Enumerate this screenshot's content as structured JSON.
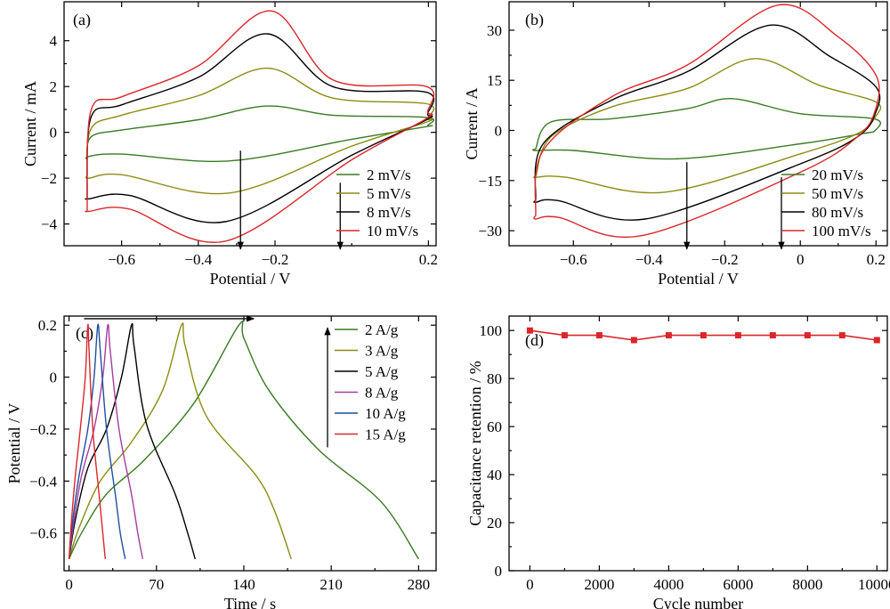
{
  "chart_data": [
    {
      "id": "a",
      "type": "line",
      "tag": "(a)",
      "xlabel": "Potential / V",
      "ylabel": "Current / mA",
      "xlim": [
        -0.75,
        0.22
      ],
      "ylim": [
        -4.95,
        5.7
      ],
      "xticks": [
        -0.6,
        -0.4,
        -0.2,
        0.2
      ],
      "xtick_labels": [
        "−0.6",
        "−0.4",
        "−0.2",
        "0.2"
      ],
      "yticks": [
        -4,
        -2,
        0,
        2,
        4
      ],
      "ytick_labels": [
        "−4",
        "−2",
        "0",
        "2",
        "4"
      ],
      "legend_position": "bottom-right",
      "series": [
        {
          "name": "2 mV/s",
          "color": "#3a7a22",
          "x": [
            -0.69,
            -0.68,
            -0.6,
            -0.4,
            -0.22,
            -0.05,
            0.195,
            0.198,
            0.195,
            0.0,
            -0.32,
            -0.6,
            -0.685,
            -0.69
          ],
          "y": [
            -1.2,
            -0.2,
            0.1,
            0.55,
            1.15,
            0.75,
            0.65,
            0.3,
            0.25,
            -0.3,
            -1.25,
            -0.95,
            -1.05,
            -1.2
          ]
        },
        {
          "name": "5 mV/s",
          "color": "#8b8b12",
          "x": [
            -0.69,
            -0.68,
            -0.6,
            -0.4,
            -0.22,
            -0.05,
            0.195,
            0.198,
            0.195,
            0.0,
            -0.32,
            -0.6,
            -0.685,
            -0.69
          ],
          "y": [
            -1.9,
            0.15,
            0.75,
            1.6,
            2.8,
            1.5,
            1.25,
            0.6,
            0.45,
            -0.6,
            -2.65,
            -1.85,
            -2.0,
            -1.9
          ]
        },
        {
          "name": "8 mV/s",
          "color": "#000000",
          "x": [
            -0.69,
            -0.68,
            -0.6,
            -0.4,
            -0.22,
            -0.05,
            0.195,
            0.198,
            0.195,
            0.0,
            -0.33,
            -0.58,
            -0.685,
            -0.69
          ],
          "y": [
            -2.9,
            0.65,
            1.2,
            2.4,
            4.3,
            2.0,
            1.75,
            0.8,
            0.55,
            -1.0,
            -3.9,
            -2.75,
            -2.9,
            -2.9
          ]
        },
        {
          "name": "10 mV/s",
          "color": "#d9262b",
          "x": [
            -0.69,
            -0.68,
            -0.6,
            -0.4,
            -0.21,
            -0.05,
            0.195,
            0.198,
            0.195,
            0.0,
            -0.33,
            -0.58,
            -0.685,
            -0.69
          ],
          "y": [
            -3.45,
            0.95,
            1.55,
            2.9,
            5.3,
            2.3,
            2.0,
            0.9,
            0.6,
            -1.2,
            -4.75,
            -3.35,
            -3.45,
            -3.45
          ]
        }
      ],
      "arrows": [
        {
          "x": -0.29,
          "y_from": -0.8,
          "y_to": -5.1
        },
        {
          "x": -0.03,
          "y_from": -2.2,
          "y_to": -5.1
        }
      ]
    },
    {
      "id": "b",
      "type": "line",
      "tag": "(b)",
      "xlabel": "Potential / V",
      "ylabel": "Current / A",
      "xlim": [
        -0.77,
        0.23
      ],
      "ylim": [
        -34.5,
        38.5
      ],
      "xticks": [
        -0.6,
        -0.4,
        -0.2,
        0,
        0.2
      ],
      "xtick_labels": [
        "−0.6",
        "−0.4",
        "−0.2",
        "0",
        "0.2"
      ],
      "yticks": [
        -30,
        -15,
        0,
        15,
        30
      ],
      "ytick_labels": [
        "−30",
        "−15",
        "0",
        "15",
        "30"
      ],
      "legend_position": "bottom-right",
      "series": [
        {
          "name": "20 mV/s",
          "color": "#3a7a22",
          "x": [
            -0.7,
            -0.66,
            -0.5,
            -0.3,
            -0.18,
            0.0,
            0.195,
            0.198,
            0.16,
            0.0,
            -0.33,
            -0.6,
            -0.7,
            -0.7
          ],
          "y": [
            -5.5,
            2.5,
            3.5,
            6.5,
            9.5,
            5.0,
            3.5,
            0.0,
            -1.0,
            -4.0,
            -8.5,
            -6.0,
            -6.0,
            -5.5
          ]
        },
        {
          "name": "50 mV/s",
          "color": "#8b8b12",
          "x": [
            -0.7,
            -0.66,
            -0.5,
            -0.3,
            -0.12,
            0.05,
            0.2,
            0.198,
            0.15,
            0.0,
            -0.36,
            -0.62,
            -0.7,
            -0.7
          ],
          "y": [
            -14.0,
            -2.0,
            7.0,
            12.5,
            21.5,
            13.5,
            8.5,
            4.0,
            -1.0,
            -7.0,
            -18.5,
            -14.0,
            -14.0,
            -14.0
          ]
        },
        {
          "name": "80 mV/s",
          "color": "#000000",
          "x": [
            -0.7,
            -0.68,
            -0.5,
            -0.3,
            -0.08,
            0.08,
            0.2,
            0.198,
            0.15,
            0.0,
            -0.41,
            -0.64,
            -0.7,
            -0.7
          ],
          "y": [
            -21.0,
            -4.0,
            9.0,
            17.5,
            31.5,
            22.0,
            13.0,
            5.0,
            -2.0,
            -10.0,
            -26.5,
            -21.0,
            -21.5,
            -21.0
          ]
        },
        {
          "name": "100 mV/s",
          "color": "#d9262b",
          "x": [
            -0.7,
            -0.68,
            -0.5,
            -0.3,
            -0.06,
            0.1,
            0.2,
            0.198,
            0.15,
            0.0,
            -0.42,
            -0.64,
            -0.7,
            -0.7
          ],
          "y": [
            -25.5,
            -6.0,
            10.0,
            19.5,
            37.5,
            28.0,
            16.5,
            6.0,
            -2.0,
            -12.5,
            -31.5,
            -26.0,
            -26.5,
            -25.5
          ]
        }
      ],
      "arrows": [
        {
          "x": -0.3,
          "y_from": -9.5,
          "y_to": -35.5
        },
        {
          "x": -0.05,
          "y_from": -14.0,
          "y_to": -35.5
        }
      ]
    },
    {
      "id": "c",
      "type": "line",
      "tag": "(c)",
      "xlabel": "Time / s",
      "ylabel": "Potential / V",
      "xlim": [
        -4,
        294
      ],
      "ylim": [
        -0.745,
        0.235
      ],
      "xticks": [
        0,
        70,
        140,
        210,
        280
      ],
      "xtick_labels": [
        "0",
        "70",
        "140",
        "210",
        "280"
      ],
      "yticks": [
        -0.6,
        -0.4,
        -0.2,
        0,
        0.2
      ],
      "ytick_labels": [
        "−0.6",
        "−0.4",
        "−0.2",
        "0",
        "0.2"
      ],
      "legend_position": "top-right",
      "series": [
        {
          "name": "2 A/g",
          "color": "#3a7a22",
          "x": [
            0,
            10,
            30,
            60,
            100,
            136,
            140,
            160,
            200,
            250,
            280
          ],
          "y": [
            -0.7,
            -0.6,
            -0.45,
            -0.32,
            -0.1,
            0.2,
            0.15,
            -0.05,
            -0.28,
            -0.48,
            -0.7
          ]
        },
        {
          "name": "3 A/g",
          "color": "#8b8b12",
          "x": [
            0,
            8,
            25,
            50,
            75,
            90,
            93,
            110,
            150,
            165,
            178
          ],
          "y": [
            -0.7,
            -0.58,
            -0.4,
            -0.25,
            -0.05,
            0.2,
            0.12,
            -0.15,
            -0.38,
            -0.52,
            -0.7
          ]
        },
        {
          "name": "5 A/g",
          "color": "#000000",
          "x": [
            0,
            5,
            15,
            30,
            42,
            50,
            52,
            62,
            85,
            95,
            101
          ],
          "y": [
            -0.7,
            -0.55,
            -0.35,
            -0.2,
            0.0,
            0.2,
            0.12,
            -0.18,
            -0.45,
            -0.6,
            -0.7
          ]
        },
        {
          "name": "8 A/g",
          "color": "#a63ca0",
          "x": [
            0,
            4,
            10,
            20,
            27,
            31,
            33,
            40,
            50,
            55,
            59
          ],
          "y": [
            -0.7,
            -0.55,
            -0.38,
            -0.2,
            0.0,
            0.2,
            0.1,
            -0.2,
            -0.45,
            -0.6,
            -0.7
          ]
        },
        {
          "name": "10 A/g",
          "color": "#1f4f9c",
          "x": [
            0,
            3,
            8,
            15,
            20,
            23,
            25,
            30,
            37,
            41,
            45
          ],
          "y": [
            -0.7,
            -0.55,
            -0.38,
            -0.2,
            0.0,
            0.2,
            0.1,
            -0.2,
            -0.45,
            -0.6,
            -0.7
          ]
        },
        {
          "name": "15 A/g",
          "color": "#d9262b",
          "x": [
            0,
            2,
            5,
            9,
            13,
            15,
            16,
            19,
            24,
            27,
            29
          ],
          "y": [
            -0.7,
            -0.55,
            -0.38,
            -0.2,
            0.0,
            0.2,
            0.1,
            -0.2,
            -0.45,
            -0.6,
            -0.7
          ]
        }
      ],
      "arrows": [
        {
          "y": 0.225,
          "x_from": 12,
          "x_to": 148
        },
        {
          "x": 350,
          "y_from": -0.27,
          "y_to": 0.19
        }
      ]
    },
    {
      "id": "d",
      "type": "scatter",
      "tag": "(d)",
      "xlabel": "Cycle number",
      "ylabel": "Capacitance retention / %",
      "xlim": [
        -600,
        10300
      ],
      "ylim": [
        0,
        106
      ],
      "xticks": [
        0,
        2000,
        4000,
        6000,
        8000,
        10000
      ],
      "xtick_labels": [
        "0",
        "2000",
        "4000",
        "6000",
        "8000",
        "10000"
      ],
      "yticks": [
        0,
        20,
        40,
        60,
        80,
        100
      ],
      "ytick_labels": [
        "0",
        "20",
        "40",
        "60",
        "80",
        "100"
      ],
      "series": [
        {
          "name": "",
          "color": "#d9262b",
          "x": [
            0,
            1000,
            2000,
            3000,
            4000,
            5000,
            6000,
            7000,
            8000,
            9000,
            10000
          ],
          "y": [
            100,
            98,
            98,
            96,
            98,
            98,
            98,
            98,
            98,
            98,
            96
          ]
        }
      ]
    }
  ]
}
